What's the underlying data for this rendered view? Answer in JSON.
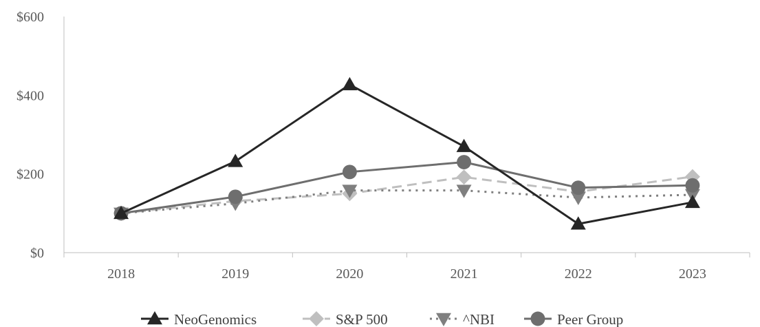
{
  "chart_data": {
    "type": "line",
    "categories": [
      "2018",
      "2019",
      "2020",
      "2021",
      "2022",
      "2023"
    ],
    "y_ticks": [
      "$0",
      "$200",
      "$400",
      "$600"
    ],
    "ylim": [
      0,
      600
    ],
    "grid": false,
    "legend_placement": "bottom",
    "series": [
      {
        "name": "NeoGenomics",
        "values": [
          100,
          232,
          427,
          270,
          73,
          128
        ],
        "color": "#262626",
        "dash": "solid",
        "marker": "triangle-up"
      },
      {
        "name": "S&P 500",
        "values": [
          100,
          131,
          150,
          192,
          155,
          193
        ],
        "color": "#bfbfbf",
        "dash": "dashed",
        "marker": "diamond"
      },
      {
        "name": "^NBI",
        "values": [
          100,
          125,
          158,
          158,
          140,
          147
        ],
        "color": "#7f7f7f",
        "dash": "dotted",
        "marker": "triangle-down"
      },
      {
        "name": "Peer Group",
        "values": [
          100,
          142,
          205,
          230,
          165,
          171
        ],
        "color": "#6e6e6e",
        "dash": "solid",
        "marker": "circle"
      }
    ]
  }
}
